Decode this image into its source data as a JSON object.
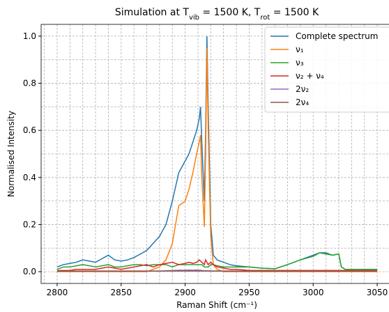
{
  "chart_data": {
    "type": "line",
    "title": [
      {
        "text": "Simulation at T"
      },
      {
        "text": "vib",
        "sub": true
      },
      {
        "text": " = 1500 K, T"
      },
      {
        "text": "rot",
        "sub": true
      },
      {
        "text": " = 1500 K"
      }
    ],
    "x_label": "Raman Shift (cm⁻¹)",
    "y_label": "Normalised Intensity",
    "x": [
      2800,
      2805,
      2810,
      2815,
      2820,
      2825,
      2830,
      2835,
      2840,
      2845,
      2850,
      2855,
      2860,
      2865,
      2870,
      2875,
      2880,
      2885,
      2890,
      2895,
      2900,
      2903,
      2906,
      2909,
      2911,
      2912,
      2913,
      2915,
      2916,
      2917,
      2918,
      2920,
      2922,
      2925,
      2930,
      2935,
      2940,
      2950,
      2960,
      2970,
      2980,
      2990,
      3000,
      3005,
      3010,
      3015,
      3020,
      3022,
      3025,
      3030,
      3040,
      3050
    ],
    "series": [
      {
        "name": "Complete spectrum",
        "color": "#1f77b4",
        "values": [
          0.02,
          0.03,
          0.035,
          0.04,
          0.05,
          0.045,
          0.04,
          0.055,
          0.07,
          0.05,
          0.045,
          0.05,
          0.06,
          0.075,
          0.09,
          0.12,
          0.15,
          0.2,
          0.3,
          0.42,
          0.47,
          0.5,
          0.55,
          0.6,
          0.65,
          0.7,
          0.55,
          0.3,
          0.6,
          1.0,
          0.7,
          0.2,
          0.07,
          0.05,
          0.04,
          0.03,
          0.025,
          0.02,
          0.015,
          0.012,
          0.03,
          0.05,
          0.07,
          0.08,
          0.08,
          0.07,
          0.075,
          0.02,
          0.01,
          0.01,
          0.01,
          0.01
        ]
      },
      {
        "name": "ν₁",
        "color": "#ff7f0e",
        "values": [
          0,
          0,
          0,
          0,
          0,
          0,
          0,
          0,
          0,
          0,
          0,
          0,
          0,
          0,
          0,
          0.01,
          0.02,
          0.05,
          0.12,
          0.28,
          0.3,
          0.35,
          0.42,
          0.5,
          0.55,
          0.58,
          0.4,
          0.19,
          0.5,
          0.95,
          0.6,
          0.15,
          0.03,
          0.01,
          0,
          0,
          0,
          0,
          0,
          0,
          0,
          0,
          0,
          0,
          0,
          0,
          0,
          0,
          0,
          0,
          0,
          0
        ]
      },
      {
        "name": "ν₃",
        "color": "#2ca02c",
        "values": [
          0.01,
          0.02,
          0.02,
          0.025,
          0.03,
          0.025,
          0.02,
          0.025,
          0.03,
          0.02,
          0.02,
          0.025,
          0.03,
          0.03,
          0.025,
          0.03,
          0.03,
          0.03,
          0.02,
          0.03,
          0.03,
          0.03,
          0.03,
          0.03,
          0.03,
          0.03,
          0.03,
          0.02,
          0.02,
          0.02,
          0.02,
          0.03,
          0.03,
          0.025,
          0.02,
          0.02,
          0.02,
          0.02,
          0.015,
          0.012,
          0.03,
          0.05,
          0.065,
          0.08,
          0.075,
          0.07,
          0.075,
          0.02,
          0.01,
          0.01,
          0.01,
          0.01
        ]
      },
      {
        "name": "ν₂ + ν₄",
        "color": "#d62728",
        "values": [
          0.005,
          0.005,
          0.005,
          0.01,
          0.01,
          0.01,
          0.01,
          0.015,
          0.02,
          0.015,
          0.01,
          0.015,
          0.02,
          0.025,
          0.03,
          0.02,
          0.03,
          0.035,
          0.04,
          0.03,
          0.035,
          0.04,
          0.035,
          0.04,
          0.05,
          0.045,
          0.04,
          0.03,
          0.05,
          0.04,
          0.03,
          0.04,
          0.03,
          0.02,
          0.015,
          0.01,
          0.01,
          0.005,
          0.005,
          0.005,
          0.005,
          0.005,
          0.005,
          0.005,
          0.005,
          0.005,
          0.005,
          0.005,
          0.005,
          0.005,
          0.005,
          0.005
        ]
      },
      {
        "name": "2ν₂",
        "color": "#9467bd",
        "values": [
          0.002,
          0.002,
          0.002,
          0.002,
          0.002,
          0.002,
          0.002,
          0.002,
          0.002,
          0.002,
          0.002,
          0.002,
          0.002,
          0.002,
          0.002,
          0.002,
          0.002,
          0.004,
          0.005,
          0.006,
          0.006,
          0.007,
          0.006,
          0.007,
          0.006,
          0.006,
          0.005,
          0.004,
          0.004,
          0.004,
          0.004,
          0.003,
          0.003,
          0.003,
          0.002,
          0.002,
          0.002,
          0.002,
          0.002,
          0.002,
          0.002,
          0.002,
          0.002,
          0.002,
          0.002,
          0.002,
          0.002,
          0.002,
          0.002,
          0.002,
          0.002,
          0.002
        ]
      },
      {
        "name": "2ν₄",
        "color": "#8c564b",
        "values": [
          0.003,
          0.003,
          0.003,
          0.003,
          0.003,
          0.003,
          0.003,
          0.003,
          0.003,
          0.003,
          0.003,
          0.003,
          0.003,
          0.003,
          0.003,
          0.003,
          0.003,
          0.003,
          0.003,
          0.003,
          0.003,
          0.003,
          0.003,
          0.003,
          0.003,
          0.003,
          0.003,
          0.003,
          0.003,
          0.003,
          0.003,
          0.003,
          0.003,
          0.003,
          0.003,
          0.003,
          0.003,
          0.003,
          0.003,
          0.003,
          0.003,
          0.003,
          0.003,
          0.003,
          0.003,
          0.003,
          0.003,
          0.003,
          0.003,
          0.003,
          0.003,
          0.003
        ]
      }
    ],
    "xlim": [
      2787.5,
      3062.5
    ],
    "ylim": [
      -0.05,
      1.05
    ],
    "xticks": [
      2800,
      2850,
      2900,
      2950,
      3000,
      3050
    ],
    "yticks": [
      {
        "value": 0,
        "label": "0.0"
      },
      0.2,
      0.4,
      0.6,
      0.8,
      {
        "value": 1,
        "label": "1.0"
      }
    ],
    "xminorticks": [
      2790,
      2810,
      2820,
      2830,
      2840,
      2860,
      2870,
      2880,
      2890,
      2910,
      2920,
      2930,
      2940,
      2960,
      2970,
      2980,
      2990,
      3010,
      3020,
      3030,
      3040,
      3060
    ],
    "yminorticks": [
      0.1,
      0.3,
      0.5,
      0.7,
      0.9
    ],
    "grid": true,
    "legend": "upper right"
  }
}
